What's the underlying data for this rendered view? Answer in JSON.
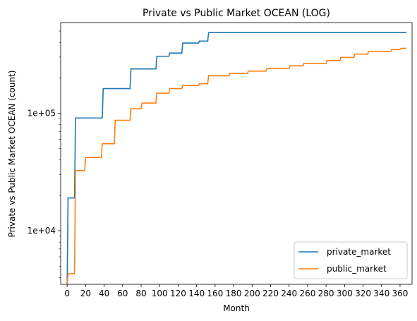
{
  "chart_data": {
    "type": "line",
    "title": "Private vs Public Market OCEAN (LOG)",
    "xlabel": "Month",
    "ylabel": "Private vs Public Market OCEAN (count)",
    "yscale": "log",
    "xlim": [
      -7,
      373
    ],
    "ylim": [
      3500,
      590000
    ],
    "grid": false,
    "legend_position": "lower-right",
    "x_ticks": [
      0,
      20,
      40,
      60,
      80,
      100,
      120,
      140,
      160,
      180,
      200,
      220,
      240,
      260,
      280,
      300,
      320,
      340,
      360
    ],
    "x_tick_labels": [
      "0",
      "20",
      "40",
      "60",
      "80",
      "100",
      "120",
      "140",
      "160",
      "180",
      "200",
      "220",
      "240",
      "260",
      "280",
      "300",
      "320",
      "340",
      "360"
    ],
    "y_ticks": [
      10000,
      100000
    ],
    "y_tick_labels": [
      "1e+04",
      "1e+05"
    ],
    "series": [
      {
        "name": "private_market",
        "color": "#1f77b4",
        "points": [
          [
            0,
            3500
          ],
          [
            1,
            19000
          ],
          [
            8,
            19000
          ],
          [
            9,
            91000
          ],
          [
            38,
            91000
          ],
          [
            39,
            162000
          ],
          [
            68,
            162000
          ],
          [
            69,
            238000
          ],
          [
            96,
            238000
          ],
          [
            97,
            305000
          ],
          [
            110,
            305000
          ],
          [
            111,
            325000
          ],
          [
            124,
            325000
          ],
          [
            125,
            395000
          ],
          [
            142,
            395000
          ],
          [
            143,
            410000
          ],
          [
            152,
            410000
          ],
          [
            153,
            485000
          ],
          [
            367,
            485000
          ]
        ]
      },
      {
        "name": "public_market",
        "color": "#ff7f0e",
        "points": [
          [
            0,
            3500
          ],
          [
            1,
            4300
          ],
          [
            8,
            4300
          ],
          [
            9,
            32500
          ],
          [
            19,
            32500
          ],
          [
            20,
            42000
          ],
          [
            37,
            42000
          ],
          [
            38,
            55000
          ],
          [
            51,
            55000
          ],
          [
            52,
            87000
          ],
          [
            68,
            87000
          ],
          [
            69,
            109000
          ],
          [
            80,
            109000
          ],
          [
            81,
            122000
          ],
          [
            96,
            122000
          ],
          [
            97,
            148000
          ],
          [
            110,
            148000
          ],
          [
            111,
            162000
          ],
          [
            124,
            162000
          ],
          [
            125,
            172000
          ],
          [
            142,
            172000
          ],
          [
            143,
            178000
          ],
          [
            152,
            178000
          ],
          [
            153,
            208000
          ],
          [
            175,
            208000
          ],
          [
            176,
            218000
          ],
          [
            195,
            218000
          ],
          [
            196,
            228000
          ],
          [
            215,
            228000
          ],
          [
            216,
            240000
          ],
          [
            240,
            240000
          ],
          [
            241,
            253000
          ],
          [
            255,
            253000
          ],
          [
            256,
            265000
          ],
          [
            280,
            265000
          ],
          [
            281,
            280000
          ],
          [
            295,
            280000
          ],
          [
            296,
            298000
          ],
          [
            310,
            298000
          ],
          [
            311,
            318000
          ],
          [
            325,
            318000
          ],
          [
            326,
            335000
          ],
          [
            350,
            335000
          ],
          [
            351,
            348000
          ],
          [
            360,
            348000
          ],
          [
            361,
            356000
          ],
          [
            367,
            356000
          ]
        ]
      }
    ]
  }
}
